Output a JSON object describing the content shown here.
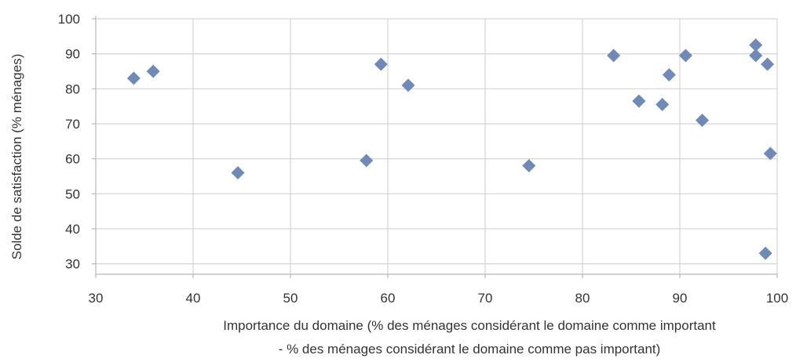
{
  "chart_data": {
    "type": "scatter",
    "xlabel_line1": "Importance du domaine (% des ménages considérant le domaine comme important",
    "xlabel_line2": "- % des ménages considérant le domaine comme pas important)",
    "ylabel": "Solde de satisfaction (% ménages)",
    "xlim": [
      30,
      100
    ],
    "ylim": [
      27,
      100
    ],
    "x_ticks": [
      30,
      40,
      50,
      60,
      70,
      80,
      90,
      100
    ],
    "y_ticks": [
      30,
      40,
      50,
      60,
      70,
      80,
      90,
      100
    ],
    "x_tick_labels": [
      "30",
      "40",
      "50",
      "60",
      "70",
      "80",
      "90",
      "100"
    ],
    "y_tick_labels": [
      "30",
      "40",
      "50",
      "60",
      "70",
      "80",
      "90",
      "100"
    ],
    "grid": true,
    "marker": "diamond",
    "marker_color": "#6f8ab8",
    "series": [
      {
        "points": [
          {
            "x": 33.9,
            "y": 83
          },
          {
            "x": 35.9,
            "y": 85
          },
          {
            "x": 44.6,
            "y": 56
          },
          {
            "x": 57.8,
            "y": 59.5
          },
          {
            "x": 59.3,
            "y": 87
          },
          {
            "x": 62.1,
            "y": 81
          },
          {
            "x": 74.5,
            "y": 58
          },
          {
            "x": 83.2,
            "y": 89.5
          },
          {
            "x": 85.8,
            "y": 76.5
          },
          {
            "x": 88.2,
            "y": 75.5
          },
          {
            "x": 88.9,
            "y": 84
          },
          {
            "x": 90.6,
            "y": 89.5
          },
          {
            "x": 92.3,
            "y": 71
          },
          {
            "x": 97.8,
            "y": 92.5
          },
          {
            "x": 97.8,
            "y": 89.5
          },
          {
            "x": 99.0,
            "y": 87
          },
          {
            "x": 99.3,
            "y": 61.5
          },
          {
            "x": 98.8,
            "y": 33
          }
        ]
      }
    ]
  }
}
